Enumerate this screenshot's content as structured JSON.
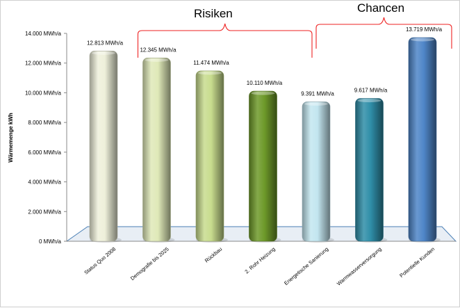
{
  "chart_data": {
    "type": "bar",
    "ylabel": "Wärmemenge kWh",
    "ylim": [
      0,
      14000
    ],
    "yticks": [
      0,
      2000,
      4000,
      6000,
      8000,
      10000,
      12000,
      14000
    ],
    "ytick_labels": [
      "0 MWh/a",
      "2.000 MWh/a",
      "4.000 MWh/a",
      "6.000 MWh/a",
      "8.000 MWh/a",
      "10.000 MWh/a",
      "12.000 MWh/a",
      "14.000 MWh/a"
    ],
    "categories": [
      "Status Quo 2008",
      "Demografie bis 2025",
      "Rückbau",
      "2. Rohr Heizung",
      "Energetische Sanierung",
      "Warmwasserversorgung",
      "Potentielle Kunden"
    ],
    "values": [
      12813,
      12345,
      11474,
      10110,
      9391,
      9617,
      13719
    ],
    "value_labels": [
      "12.813 MWh/a",
      "12.345 MWh/a",
      "11.474 MWh/a",
      "10.110 MWh/a",
      "9.391 MWh/a",
      "9.617 MWh/a",
      "13.719 MWh/a"
    ],
    "bar_colors": [
      "#eef0da",
      "#dfe9b8",
      "#c8dc8e",
      "#6e9a2a",
      "#c3e6f0",
      "#2f8ea8",
      "#4f86c8"
    ],
    "groups": [
      {
        "label": "Risiken",
        "from": 1,
        "to": 4
      },
      {
        "label": "Chancen",
        "from": 4,
        "to": 6
      }
    ],
    "bracket_color": "#ee2222",
    "grid": false,
    "legend": "none"
  }
}
